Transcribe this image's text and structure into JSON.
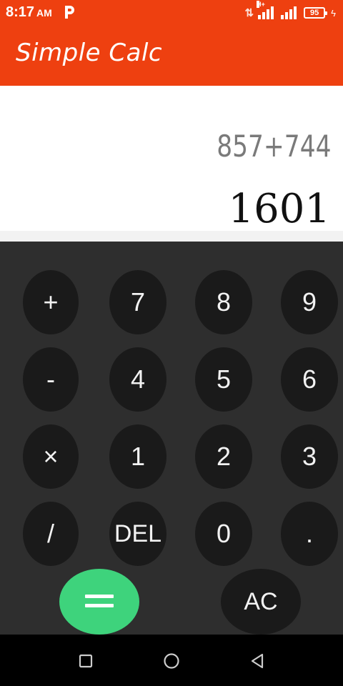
{
  "status_bar": {
    "time": "8:17",
    "ampm": "AM",
    "network": "H+",
    "battery": "95"
  },
  "app": {
    "title": "Simple Calc"
  },
  "display": {
    "expression": "857+744",
    "result": "1601"
  },
  "keypad": {
    "plus": "+",
    "minus": "-",
    "multiply": "×",
    "divide": "/",
    "seven": "7",
    "eight": "8",
    "nine": "9",
    "four": "4",
    "five": "5",
    "six": "6",
    "one": "1",
    "two": "2",
    "three": "3",
    "del": "DEL",
    "zero": "0",
    "dot": ".",
    "equals": "=",
    "ac": "AC"
  },
  "colors": {
    "accent": "#ee4010",
    "equals": "#3ed37c",
    "keypad_bg": "#2e2e2e",
    "key_bg": "#1a1a1a"
  }
}
